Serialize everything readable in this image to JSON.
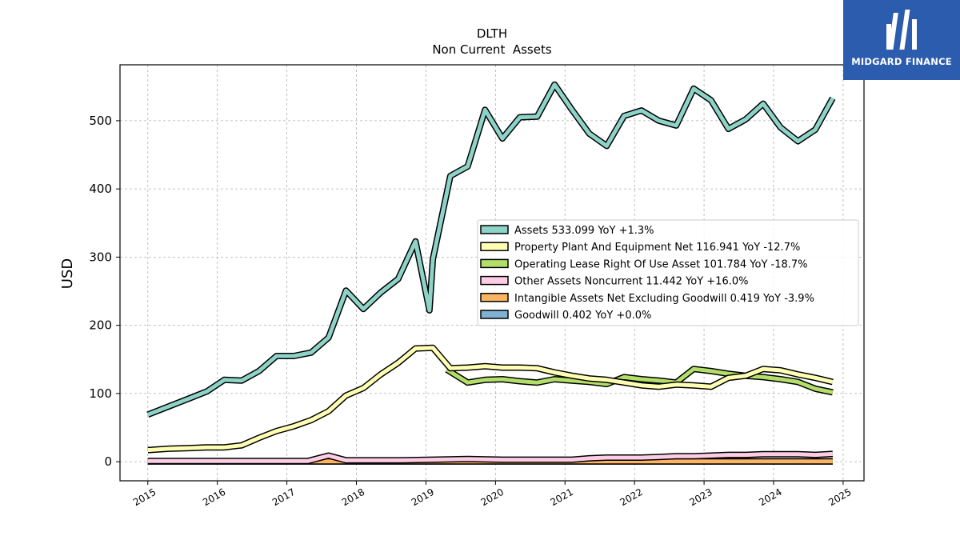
{
  "chart_data": {
    "type": "line",
    "title": "DLTH",
    "subtitle": "Non Current  Assets",
    "xlabel": "",
    "ylabel": "USD",
    "xlim": [
      2014.6,
      2025.3
    ],
    "ylim": [
      -28,
      582
    ],
    "x_ticks": [
      "2015",
      "2016",
      "2017",
      "2018",
      "2019",
      "2020",
      "2021",
      "2022",
      "2023",
      "2024",
      "2025"
    ],
    "y_ticks": [
      "0",
      "100",
      "200",
      "300",
      "400",
      "500"
    ],
    "grid": true,
    "legend_position": "center-right",
    "series": [
      {
        "name": "Goodwill  0.402 YoY +0.0%",
        "color": "#80b1d3",
        "x": [
          2015.0,
          2024.85
        ],
        "y": [
          0.4,
          0.4
        ]
      },
      {
        "name": "Intangible Assets Net Excluding Goodwill  0.419 YoY -3.9%",
        "color": "#fdb462",
        "x": [
          2015.0,
          2016.0,
          2017.0,
          2018.0,
          2019.0,
          2020.0,
          2021.0,
          2022.0,
          2023.0,
          2024.0,
          2024.85
        ],
        "y": [
          0.5,
          0.5,
          0.5,
          0.5,
          0.5,
          0.5,
          0.5,
          0.5,
          0.5,
          0.45,
          0.42
        ]
      },
      {
        "name": "Other Assets Noncurrent  11.442 YoY +16.0%",
        "color": "#fccde5",
        "x": [
          2015.0,
          2015.5,
          2016.0,
          2016.5,
          2017.0,
          2017.3,
          2017.6,
          2017.85,
          2018.1,
          2018.6,
          2019.1,
          2019.6,
          2020.1,
          2020.6,
          2021.1,
          2021.35,
          2021.6,
          2021.85,
          2022.1,
          2022.35,
          2022.6,
          2022.85,
          2023.1,
          2023.35,
          2023.6,
          2023.85,
          2024.1,
          2024.35,
          2024.6,
          2024.85
        ],
        "y": [
          1,
          1,
          1,
          1,
          1,
          1,
          9,
          2,
          2,
          2,
          3,
          4,
          3,
          3,
          3,
          5,
          6,
          6,
          6,
          7,
          8,
          8,
          9,
          10,
          10,
          11,
          11,
          11,
          10,
          11.4
        ]
      },
      {
        "name": "Operating Lease Right Of Use Asset  101.784 YoY -18.7%",
        "color": "#b3de69",
        "x": [
          2019.3,
          2019.6,
          2019.85,
          2020.1,
          2020.35,
          2020.6,
          2020.85,
          2021.1,
          2021.35,
          2021.6,
          2021.85,
          2022.1,
          2022.35,
          2022.6,
          2022.85,
          2023.1,
          2023.35,
          2023.6,
          2023.85,
          2024.1,
          2024.35,
          2024.6,
          2024.85
        ],
        "y": [
          135,
          116,
          120,
          121,
          118,
          116,
          121,
          119,
          117,
          114,
          124,
          121,
          119,
          116,
          136,
          133,
          129,
          126,
          124,
          121,
          117,
          107,
          101.8
        ]
      },
      {
        "name": "Property Plant And Equipment Net  116.941 YoY -12.7%",
        "color": "#ffffb3",
        "x": [
          2015.0,
          2015.3,
          2015.6,
          2015.85,
          2016.1,
          2016.35,
          2016.6,
          2016.85,
          2017.1,
          2017.35,
          2017.6,
          2017.85,
          2018.1,
          2018.35,
          2018.6,
          2018.85,
          2019.1,
          2019.35,
          2019.6,
          2019.85,
          2020.1,
          2020.35,
          2020.6,
          2020.85,
          2021.1,
          2021.35,
          2021.6,
          2021.85,
          2022.1,
          2022.35,
          2022.6,
          2022.85,
          2023.1,
          2023.35,
          2023.6,
          2023.85,
          2024.1,
          2024.35,
          2024.6,
          2024.85
        ],
        "y": [
          17,
          19,
          20,
          21,
          21,
          24,
          35,
          45,
          52,
          61,
          74,
          97,
          108,
          128,
          145,
          166,
          167,
          137,
          138,
          140,
          138,
          138,
          137,
          131,
          126,
          122,
          120,
          116,
          112,
          110,
          113,
          112,
          110,
          123,
          126,
          136,
          134,
          128,
          123,
          116.9
        ]
      },
      {
        "name": "Assets  533.099 YoY +1.3%",
        "color": "#8dd3c7",
        "x": [
          2015.0,
          2015.3,
          2015.6,
          2015.85,
          2016.1,
          2016.35,
          2016.6,
          2016.85,
          2017.1,
          2017.35,
          2017.6,
          2017.85,
          2018.1,
          2018.35,
          2018.6,
          2018.85,
          2019.05,
          2019.1,
          2019.35,
          2019.6,
          2019.85,
          2020.1,
          2020.35,
          2020.6,
          2020.85,
          2021.1,
          2021.35,
          2021.6,
          2021.85,
          2022.1,
          2022.35,
          2022.6,
          2022.85,
          2023.1,
          2023.35,
          2023.6,
          2023.85,
          2024.1,
          2024.35,
          2024.6,
          2024.85
        ],
        "y": [
          69,
          81,
          93,
          103,
          120,
          119,
          133,
          155,
          155,
          160,
          182,
          251,
          224,
          248,
          268,
          323,
          222,
          297,
          419,
          433,
          516,
          474,
          505,
          506,
          553,
          516,
          481,
          463,
          507,
          515,
          500,
          493,
          547,
          530,
          488,
          502,
          525,
          490,
          470,
          487,
          533.1
        ]
      }
    ]
  },
  "legend": [
    {
      "label": "Assets  533.099 YoY +1.3%",
      "color": "#8dd3c7"
    },
    {
      "label": "Property Plant And Equipment Net  116.941 YoY -12.7%",
      "color": "#ffffb3"
    },
    {
      "label": "Operating Lease Right Of Use Asset  101.784 YoY -18.7%",
      "color": "#b3de69"
    },
    {
      "label": "Other Assets Noncurrent  11.442 YoY +16.0%",
      "color": "#fccde5"
    },
    {
      "label": "Intangible Assets Net Excluding Goodwill  0.419 YoY -3.9%",
      "color": "#fdb462"
    },
    {
      "label": "Goodwill  0.402 YoY +0.0%",
      "color": "#80b1d3"
    }
  ],
  "logo": {
    "text": "MIDGARD FINANCE",
    "background": "#2c5cad"
  }
}
